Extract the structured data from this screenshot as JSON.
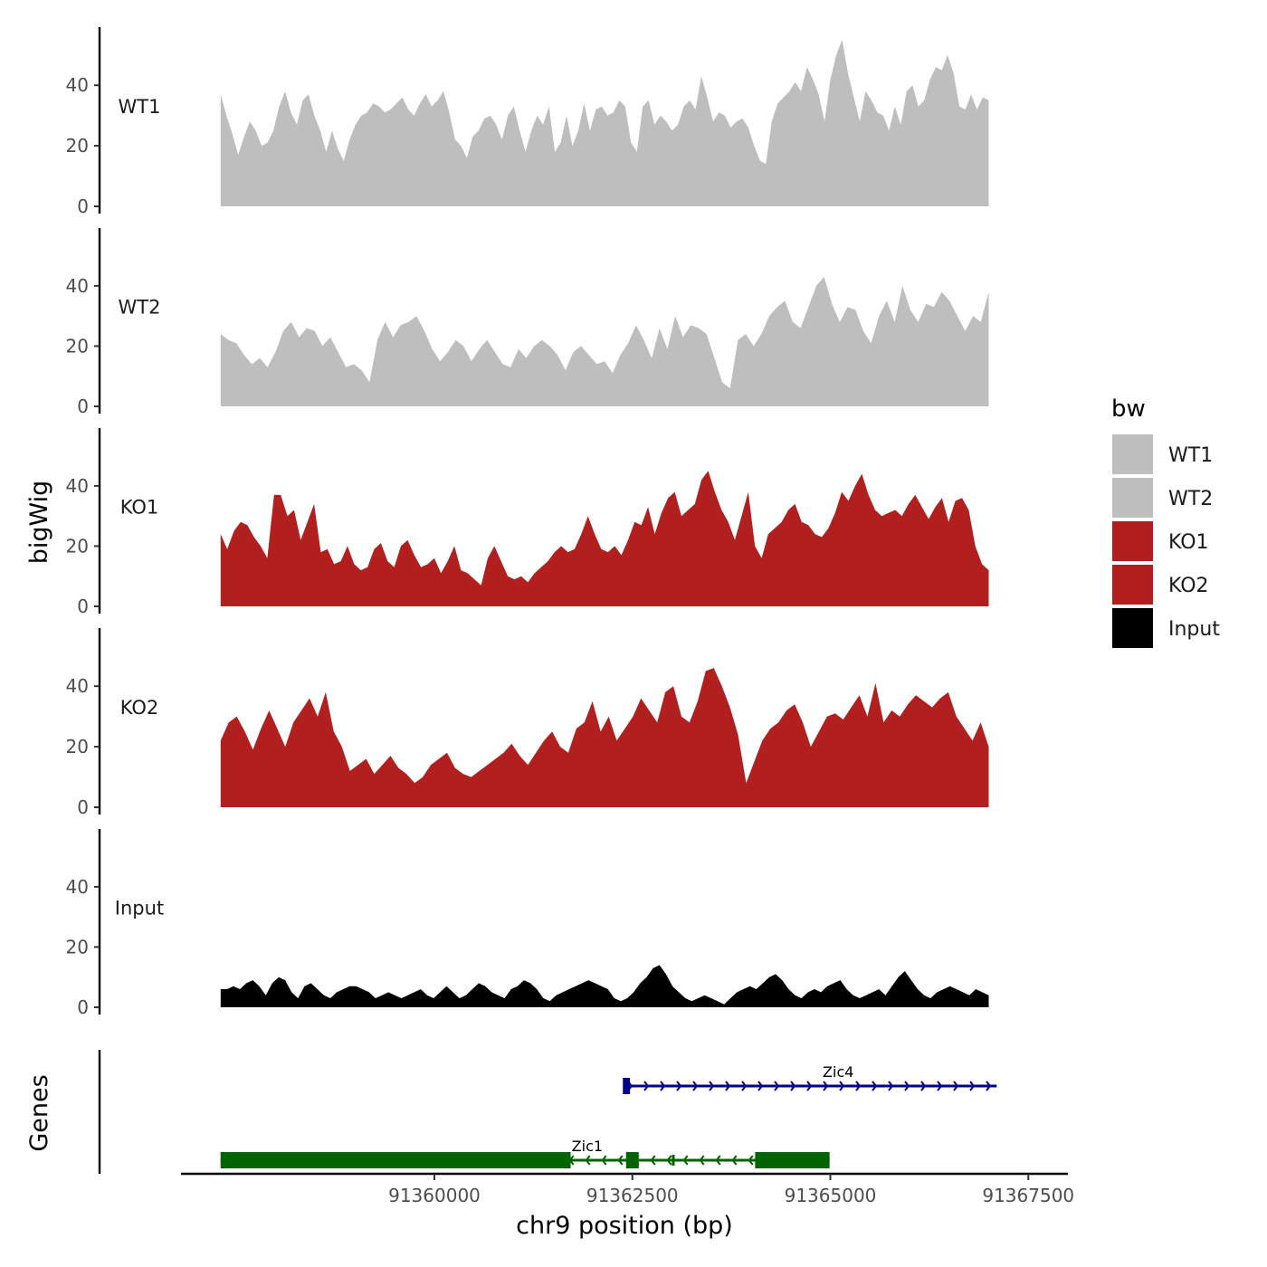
{
  "chart_data": {
    "type": "area",
    "chromosome": "chr9",
    "xlabel": "chr9 position (bp)",
    "ylabel": "bigWig",
    "genes_label": "Genes",
    "xlim": [
      91356800,
      91368000
    ],
    "x_ticks": [
      91360000,
      91362500,
      91365000,
      91367500
    ],
    "ylim": [
      0,
      58
    ],
    "y_ticks": [
      0,
      20,
      40
    ],
    "legend": {
      "title": "bw",
      "position": "right",
      "entries": [
        {
          "name": "WT1",
          "color": "#bebebe"
        },
        {
          "name": "WT2",
          "color": "#bebebe"
        },
        {
          "name": "KO1",
          "color": "#b21f1f"
        },
        {
          "name": "KO2",
          "color": "#b21f1f"
        },
        {
          "name": "Input",
          "color": "#000000"
        }
      ]
    },
    "series": [
      {
        "name": "WT1",
        "color": "#bebebe",
        "x_start": 91357300,
        "x_end": 91367000,
        "values": [
          37,
          30,
          24,
          17,
          23,
          28,
          25,
          20,
          21,
          25,
          33,
          38,
          31,
          27,
          35,
          37,
          30,
          25,
          18,
          25,
          19,
          15,
          22,
          27,
          30,
          31,
          34,
          33,
          31,
          32,
          34,
          36,
          32,
          30,
          34,
          37,
          33,
          35,
          38,
          31,
          22,
          20,
          16,
          23,
          25,
          29,
          30,
          27,
          22,
          30,
          33,
          25,
          18,
          25,
          30,
          27,
          33,
          18,
          21,
          30,
          20,
          25,
          34,
          25,
          32,
          33,
          30,
          31,
          35,
          33,
          21,
          18,
          33,
          35,
          27,
          30,
          28,
          25,
          27,
          33,
          35,
          32,
          43,
          36,
          28,
          31,
          30,
          26,
          28,
          29,
          26,
          20,
          15,
          14,
          28,
          34,
          36,
          38,
          41,
          38,
          46,
          42,
          37,
          28,
          42,
          50,
          55,
          44,
          36,
          28,
          38,
          35,
          31,
          30,
          25,
          33,
          27,
          38,
          40,
          33,
          35,
          42,
          46,
          45,
          50,
          44,
          33,
          32,
          37,
          32,
          36,
          35
        ],
        "sep": 1
      },
      {
        "name": "WT2",
        "color": "#bebebe",
        "x_start": 91357300,
        "x_end": 91367000,
        "values": [
          24,
          22,
          21,
          17,
          14,
          16,
          13,
          18,
          25,
          28,
          23,
          26,
          25,
          20,
          23,
          18,
          13,
          14,
          12,
          8,
          22,
          28,
          23,
          27,
          28,
          30,
          25,
          19,
          15,
          18,
          22,
          20,
          15,
          19,
          22,
          18,
          14,
          13,
          19,
          16,
          20,
          22,
          20,
          17,
          12,
          18,
          20,
          17,
          14,
          15,
          11,
          17,
          21,
          27,
          22,
          16,
          26,
          19,
          30,
          23,
          27,
          26,
          24,
          16,
          8,
          6,
          22,
          24,
          20,
          24,
          30,
          33,
          35,
          28,
          26,
          33,
          40,
          43,
          34,
          28,
          33,
          32,
          25,
          21,
          30,
          35,
          28,
          40,
          32,
          28,
          34,
          33,
          38,
          35,
          30,
          25,
          30,
          28,
          38
        ],
        "sep": 1
      },
      {
        "name": "KO1",
        "color": "#b21f1f",
        "x_start": 91357300,
        "x_end": 91367000,
        "values": [
          24,
          19,
          25,
          28,
          27,
          23,
          20,
          16,
          37,
          37,
          30,
          32,
          22,
          28,
          34,
          18,
          19,
          14,
          15,
          20,
          14,
          12,
          13,
          19,
          21,
          15,
          13,
          20,
          22,
          17,
          13,
          14,
          16,
          11,
          15,
          20,
          12,
          11,
          9,
          7,
          16,
          20,
          15,
          10,
          9,
          10,
          8,
          11,
          13,
          15,
          18,
          20,
          18,
          19,
          24,
          30,
          24,
          19,
          18,
          20,
          17,
          22,
          28,
          27,
          33,
          24,
          31,
          36,
          38,
          30,
          32,
          34,
          42,
          45,
          38,
          32,
          28,
          22,
          30,
          38,
          20,
          16,
          24,
          26,
          28,
          32,
          34,
          28,
          27,
          24,
          23,
          26,
          31,
          38,
          35,
          40,
          44,
          37,
          32,
          30,
          31,
          32,
          30,
          34,
          37,
          33,
          29,
          33,
          36,
          28,
          35,
          36,
          32,
          20,
          14,
          12
        ],
        "sep": 1
      },
      {
        "name": "KO2",
        "color": "#b21f1f",
        "x_start": 91357300,
        "x_end": 91367000,
        "values": [
          22,
          28,
          30,
          25,
          19,
          26,
          32,
          26,
          20,
          28,
          32,
          36,
          30,
          38,
          25,
          20,
          12,
          14,
          16,
          11,
          14,
          17,
          13,
          11,
          8,
          10,
          14,
          16,
          18,
          13,
          11,
          10,
          12,
          14,
          16,
          18,
          21,
          17,
          14,
          18,
          22,
          25,
          20,
          18,
          26,
          28,
          35,
          25,
          30,
          22,
          26,
          30,
          36,
          32,
          28,
          38,
          40,
          30,
          28,
          35,
          45,
          46,
          40,
          33,
          24,
          8,
          15,
          22,
          26,
          28,
          32,
          34,
          28,
          20,
          25,
          30,
          31,
          29,
          33,
          37,
          30,
          41,
          28,
          32,
          30,
          34,
          37,
          35,
          33,
          36,
          38,
          30,
          26,
          22,
          28,
          20
        ],
        "sep": 1
      },
      {
        "name": "Input",
        "color": "#000000",
        "x_start": 91357300,
        "x_end": 91367000,
        "values": [
          6,
          6,
          7,
          6,
          8,
          9,
          7,
          4,
          8,
          10,
          9,
          5,
          3,
          7,
          8,
          6,
          4,
          3,
          5,
          6,
          7,
          7,
          6,
          5,
          3,
          4,
          5,
          4,
          3,
          4,
          5,
          6,
          4,
          3,
          5,
          7,
          5,
          3,
          4,
          6,
          8,
          7,
          5,
          4,
          3,
          6,
          7,
          9,
          8,
          6,
          3,
          2,
          4,
          5,
          6,
          7,
          8,
          9,
          8,
          7,
          6,
          3,
          2,
          3,
          5,
          8,
          10,
          13,
          14,
          11,
          7,
          5,
          3,
          2,
          3,
          4,
          3,
          2,
          1,
          3,
          5,
          6,
          7,
          6,
          8,
          10,
          11,
          9,
          6,
          4,
          3,
          5,
          6,
          5,
          7,
          8,
          9,
          6,
          4,
          3,
          4,
          5,
          6,
          4,
          7,
          10,
          12,
          9,
          6,
          4,
          3,
          5,
          6,
          7,
          6,
          5,
          4,
          6,
          5,
          4
        ],
        "sep": 1
      }
    ],
    "genes": [
      {
        "name": "Zic4",
        "strand": "+",
        "color": "#00008b",
        "start": 91362400,
        "end": 91367100,
        "exons": [
          [
            91362380,
            91362470
          ]
        ],
        "label_x": 91365100
      },
      {
        "name": "Zic1",
        "strand": "-",
        "color": "#006400",
        "start": 91357300,
        "end": 91364990,
        "exons": [
          [
            91357300,
            91361720
          ],
          [
            91362420,
            91362580
          ],
          [
            91364050,
            91364990
          ]
        ],
        "thin": [
          [
            91363000,
            91363020
          ]
        ],
        "label_x": 91361930
      }
    ]
  }
}
